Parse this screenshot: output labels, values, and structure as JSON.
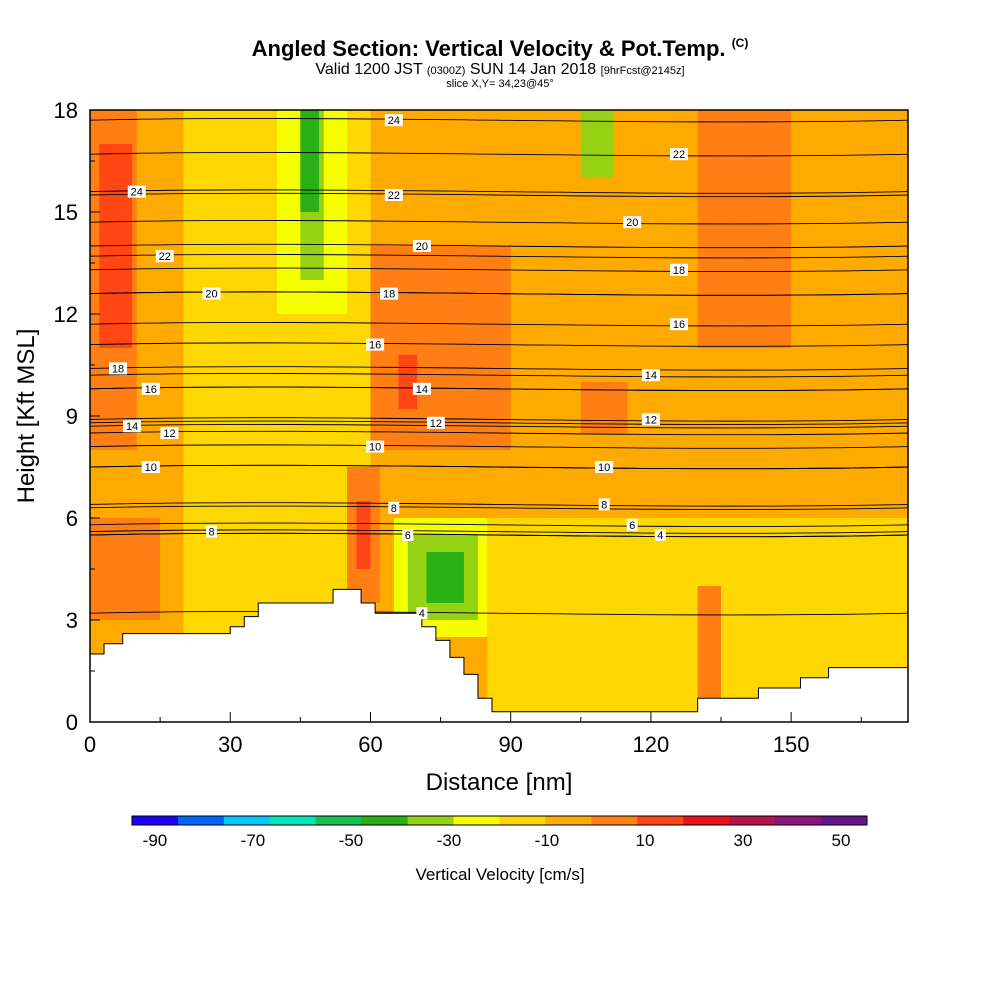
{
  "header": {
    "title": "Angled Section: Vertical Velocity & Pot.Temp.",
    "title_units": "(C)",
    "valid_prefix": "Valid 1200 JST",
    "valid_zulu": "(0300Z)",
    "valid_date": "SUN 14 Jan 2018",
    "forecast": "[9hrFcst@2145z]",
    "slice": "slice X,Y= 34,23@45°"
  },
  "chart_data": {
    "type": "heatmap",
    "xlabel": "Distance [nm]",
    "ylabel": "Height [Kft MSL]",
    "xlim": [
      0,
      175
    ],
    "ylim": [
      0,
      18
    ],
    "xticks": [
      0,
      30,
      60,
      90,
      120,
      150
    ],
    "yticks": [
      0,
      3,
      6,
      9,
      12,
      15,
      18
    ],
    "grid": false,
    "colorbar": {
      "label": "Vertical Velocity [cm/s]",
      "range": [
        -90,
        60
      ],
      "step": 10,
      "tick_labels": [
        "-90",
        "-70",
        "-50",
        "-30",
        "-10",
        "10",
        "30",
        "50"
      ],
      "colors": [
        "#1e00ff",
        "#0064ff",
        "#00c8ff",
        "#00e6b4",
        "#14c050",
        "#28b014",
        "#96d214",
        "#f5ff00",
        "#ffd700",
        "#ffaa00",
        "#ff7f14",
        "#ff4614",
        "#e6141e",
        "#b4144b",
        "#8c1478",
        "#64148c"
      ]
    },
    "terrain_kft": [
      [
        0,
        2.0
      ],
      [
        3,
        2.0
      ],
      [
        3,
        2.3
      ],
      [
        7,
        2.3
      ],
      [
        7,
        2.6
      ],
      [
        30,
        2.6
      ],
      [
        30,
        2.8
      ],
      [
        33,
        2.8
      ],
      [
        33,
        3.1
      ],
      [
        36,
        3.1
      ],
      [
        36,
        3.5
      ],
      [
        52,
        3.5
      ],
      [
        52,
        3.9
      ],
      [
        58,
        3.9
      ],
      [
        58,
        3.5
      ],
      [
        61,
        3.5
      ],
      [
        61,
        3.2
      ],
      [
        71,
        3.2
      ],
      [
        71,
        2.8
      ],
      [
        74,
        2.8
      ],
      [
        74,
        2.4
      ],
      [
        77,
        2.4
      ],
      [
        77,
        1.9
      ],
      [
        80,
        1.9
      ],
      [
        80,
        1.4
      ],
      [
        83,
        1.4
      ],
      [
        83,
        0.7
      ],
      [
        86,
        0.7
      ],
      [
        86,
        0.3
      ],
      [
        130,
        0.3
      ],
      [
        130,
        0.7
      ],
      [
        143,
        0.7
      ],
      [
        143,
        1.0
      ],
      [
        152,
        1.0
      ],
      [
        152,
        1.3
      ],
      [
        158,
        1.3
      ],
      [
        158,
        1.6
      ],
      [
        175,
        1.6
      ]
    ],
    "velocity_cells": [
      {
        "x": [
          0,
          20
        ],
        "y": [
          0,
          18
        ],
        "value": 0
      },
      {
        "x": [
          20,
          60
        ],
        "y": [
          0,
          18
        ],
        "value": -5
      },
      {
        "x": [
          60,
          175
        ],
        "y": [
          0,
          18
        ],
        "value": 0
      },
      {
        "x": [
          85,
          175
        ],
        "y": [
          0,
          6
        ],
        "value": -5
      },
      {
        "x": [
          40,
          55
        ],
        "y": [
          12,
          18
        ],
        "value": -15
      },
      {
        "x": [
          45,
          50
        ],
        "y": [
          13,
          18
        ],
        "value": -25
      },
      {
        "x": [
          45,
          49
        ],
        "y": [
          15,
          18
        ],
        "value": -35
      },
      {
        "x": [
          105,
          112
        ],
        "y": [
          16,
          18
        ],
        "value": -25
      },
      {
        "x": [
          65,
          85
        ],
        "y": [
          2.5,
          6
        ],
        "value": -15
      },
      {
        "x": [
          68,
          83
        ],
        "y": [
          3,
          5.5
        ],
        "value": -30
      },
      {
        "x": [
          72,
          80
        ],
        "y": [
          3.5,
          5
        ],
        "value": -35
      },
      {
        "x": [
          0,
          15
        ],
        "y": [
          3,
          6
        ],
        "value": 10
      },
      {
        "x": [
          0,
          10
        ],
        "y": [
          8,
          18
        ],
        "value": 10
      },
      {
        "x": [
          2,
          9
        ],
        "y": [
          11,
          17
        ],
        "value": 25
      },
      {
        "x": [
          60,
          90
        ],
        "y": [
          8,
          14
        ],
        "value": 10
      },
      {
        "x": [
          64,
          72
        ],
        "y": [
          9,
          11.5
        ],
        "value": 15
      },
      {
        "x": [
          66,
          70
        ],
        "y": [
          9.2,
          10.8
        ],
        "value": 25
      },
      {
        "x": [
          55,
          62
        ],
        "y": [
          3.5,
          7.5
        ],
        "value": 10
      },
      {
        "x": [
          57,
          60
        ],
        "y": [
          4.5,
          6.5
        ],
        "value": 25
      },
      {
        "x": [
          130,
          150
        ],
        "y": [
          11,
          18
        ],
        "value": 10
      },
      {
        "x": [
          135,
          143
        ],
        "y": [
          13,
          18
        ],
        "value": 15
      },
      {
        "x": [
          105,
          115
        ],
        "y": [
          8.5,
          10
        ],
        "value": 10
      },
      {
        "x": [
          130,
          135
        ],
        "y": [
          0,
          4
        ],
        "value": 10
      },
      {
        "x": [
          132,
          134
        ],
        "y": [
          2,
          3.5
        ],
        "value": 15
      }
    ],
    "isentrope_labels": [
      {
        "x": 10,
        "y": 15.6,
        "text": "24"
      },
      {
        "x": 65,
        "y": 17.7,
        "text": "24"
      },
      {
        "x": 65,
        "y": 15.5,
        "text": "22"
      },
      {
        "x": 16,
        "y": 13.7,
        "text": "22"
      },
      {
        "x": 126,
        "y": 16.7,
        "text": "22"
      },
      {
        "x": 71,
        "y": 14.0,
        "text": "20"
      },
      {
        "x": 26,
        "y": 12.6,
        "text": "20"
      },
      {
        "x": 116,
        "y": 14.7,
        "text": "20"
      },
      {
        "x": 64,
        "y": 12.6,
        "text": "18"
      },
      {
        "x": 126,
        "y": 13.3,
        "text": "18"
      },
      {
        "x": 6,
        "y": 10.4,
        "text": "18"
      },
      {
        "x": 61,
        "y": 11.1,
        "text": "16"
      },
      {
        "x": 13,
        "y": 9.8,
        "text": "16"
      },
      {
        "x": 126,
        "y": 11.7,
        "text": "16"
      },
      {
        "x": 71,
        "y": 9.8,
        "text": "14"
      },
      {
        "x": 9,
        "y": 8.7,
        "text": "14"
      },
      {
        "x": 120,
        "y": 10.2,
        "text": "14"
      },
      {
        "x": 17,
        "y": 8.5,
        "text": "12"
      },
      {
        "x": 74,
        "y": 8.8,
        "text": "12"
      },
      {
        "x": 120,
        "y": 8.9,
        "text": "12"
      },
      {
        "x": 13,
        "y": 7.5,
        "text": "10"
      },
      {
        "x": 61,
        "y": 8.1,
        "text": "10"
      },
      {
        "x": 110,
        "y": 7.5,
        "text": "10"
      },
      {
        "x": 26,
        "y": 5.6,
        "text": "8"
      },
      {
        "x": 65,
        "y": 6.3,
        "text": "8"
      },
      {
        "x": 110,
        "y": 6.4,
        "text": "8"
      },
      {
        "x": 68,
        "y": 5.5,
        "text": "6"
      },
      {
        "x": 116,
        "y": 5.8,
        "text": "6"
      },
      {
        "x": 122,
        "y": 5.5,
        "text": "4"
      },
      {
        "x": 71,
        "y": 3.2,
        "text": "4"
      }
    ]
  }
}
